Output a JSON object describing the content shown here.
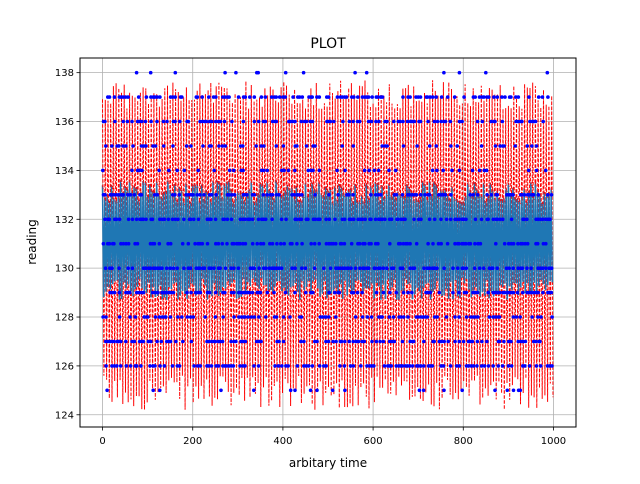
{
  "chart_data": {
    "type": "line",
    "title": "PLOT",
    "xlabel": "arbitary time",
    "ylabel": "reading",
    "xlim": [
      -50,
      1050
    ],
    "ylim": [
      123.5,
      138.6
    ],
    "x_ticks": [
      0,
      200,
      400,
      600,
      800,
      1000
    ],
    "x_tick_labels": [
      "0",
      "200",
      "400",
      "600",
      "800",
      "1000"
    ],
    "y_ticks": [
      124,
      126,
      128,
      130,
      132,
      134,
      136,
      138
    ],
    "y_tick_labels": [
      "124",
      "126",
      "128",
      "130",
      "132",
      "134",
      "136",
      "138"
    ],
    "grid": true,
    "legend": "none",
    "x_range": [
      0,
      999
    ],
    "series": [
      {
        "style": "solid line",
        "color": "#1f77b4",
        "oscillation_min": 128.7,
        "oscillation_max": 133.6,
        "center": 131.1
      },
      {
        "style": "dashed line",
        "color": "#ff0000",
        "oscillation_min": 124.2,
        "oscillation_max": 137.7
      },
      {
        "style": "points",
        "color": "#0000ff",
        "integer_levels": [
          125,
          126,
          127,
          128,
          129,
          130,
          131,
          132,
          133,
          134,
          135,
          136,
          137,
          138
        ]
      }
    ]
  }
}
